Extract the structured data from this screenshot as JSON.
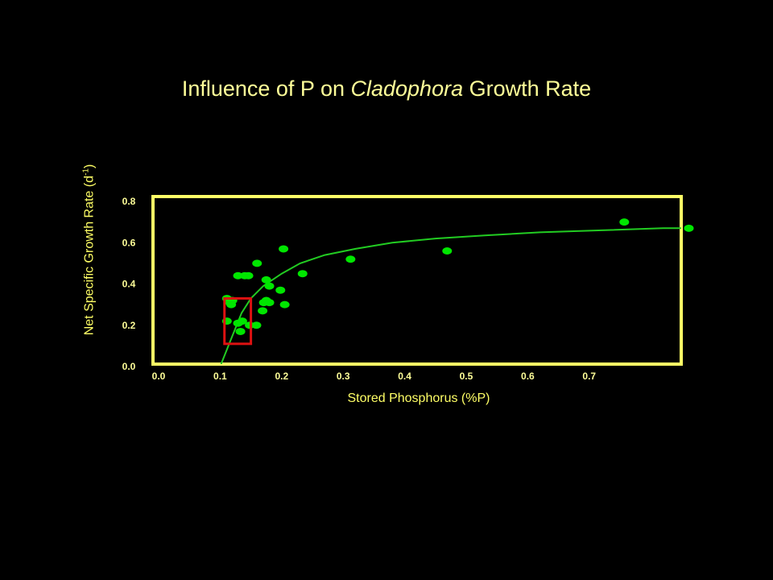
{
  "title": {
    "prefix": "Influence of P on ",
    "italic": "Cladophora",
    "suffix": " Growth Rate"
  },
  "colors": {
    "background": "#000000",
    "frame": "#ffff66",
    "text": "#ffff99",
    "points": "#00e600",
    "curve": "#22cc22",
    "highlight": "#dd1111"
  },
  "chart_data": {
    "type": "scatter",
    "xlabel": "Stored Phosphorus (%P)",
    "ylabel_main": "Net Specific Growth Rate (d",
    "ylabel_sup": "-1",
    "ylabel_end": ")",
    "xlim": [
      0.0,
      0.915
    ],
    "ylim": [
      0.0,
      0.8
    ],
    "x_ticks": [
      "0.0",
      "0.1",
      "0.2",
      "0.3",
      "0.4",
      "0.5",
      "0.6",
      "0.7"
    ],
    "y_ticks": [
      "0.0",
      "0.2",
      "0.4",
      "0.6",
      "0.8"
    ],
    "grid": false,
    "series": [
      {
        "type": "scatter",
        "x": [
          0.757,
          0.862,
          0.203,
          0.234,
          0.469,
          0.312,
          0.111,
          0.129,
          0.14,
          0.146,
          0.16,
          0.175,
          0.18,
          0.18,
          0.198,
          0.205,
          0.175,
          0.171,
          0.169,
          0.159,
          0.148,
          0.136,
          0.133,
          0.129,
          0.111,
          0.118,
          0.12,
          0.116
        ],
        "y": [
          0.7,
          0.67,
          0.57,
          0.45,
          0.56,
          0.52,
          0.33,
          0.44,
          0.44,
          0.44,
          0.5,
          0.42,
          0.39,
          0.31,
          0.37,
          0.3,
          0.32,
          0.31,
          0.27,
          0.2,
          0.2,
          0.22,
          0.17,
          0.21,
          0.22,
          0.3,
          0.32,
          0.31
        ]
      },
      {
        "type": "line",
        "x": [
          0.1,
          0.12,
          0.135,
          0.15,
          0.17,
          0.2,
          0.23,
          0.27,
          0.32,
          0.38,
          0.45,
          0.53,
          0.62,
          0.72,
          0.82,
          0.9
        ],
        "y": [
          0.0,
          0.15,
          0.26,
          0.33,
          0.39,
          0.45,
          0.5,
          0.54,
          0.57,
          0.6,
          0.62,
          0.635,
          0.65,
          0.66,
          0.67,
          0.67
        ]
      }
    ],
    "highlight_box": {
      "x": [
        0.107,
        0.15
      ],
      "y": [
        0.11,
        0.33
      ]
    }
  }
}
